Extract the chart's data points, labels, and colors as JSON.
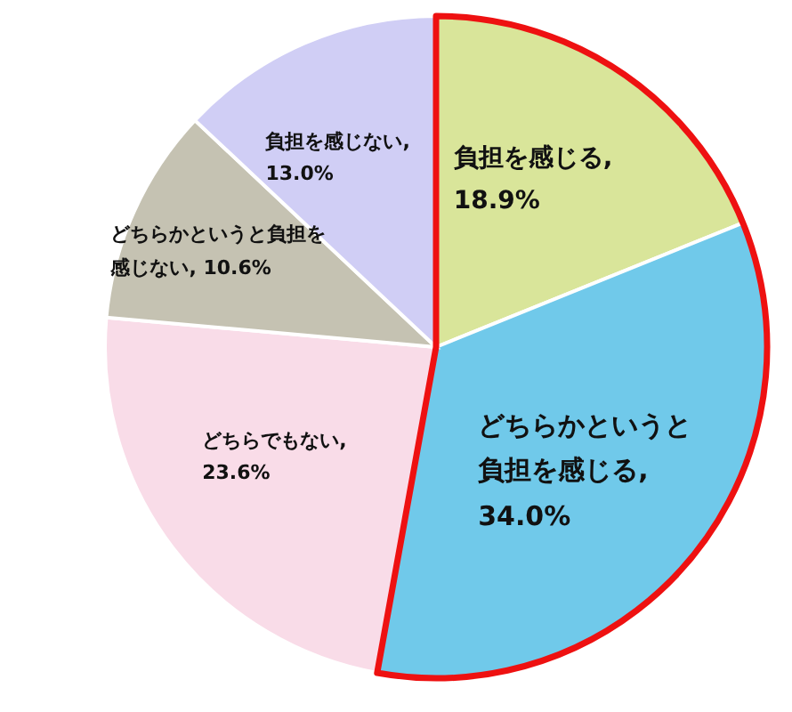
{
  "chart_data": {
    "type": "pie",
    "categories": [
      "負担を感じる",
      "どちらかというと負担を感じる",
      "どちらでもない",
      "どちらかというと負担を感じない",
      "負担を感じない"
    ],
    "value_labels": [
      ", 18.9%",
      ", 34.0%",
      ", 23.6%",
      ", 10.6%",
      ", 13.0%"
    ],
    "values": [
      18.9,
      34.0,
      23.6,
      10.6,
      13.0
    ],
    "colors": [
      "#d9e59a",
      "#70c9ea",
      "#f9dce8",
      "#c5c2b2",
      "#d0cef5"
    ],
    "data_labels": true
  }
}
